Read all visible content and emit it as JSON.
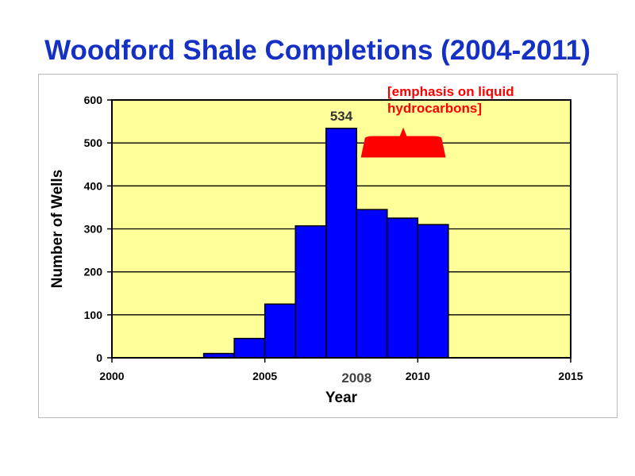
{
  "title": "Woodford Shale Completions (2004-2011)",
  "colors": {
    "title": "#1530c4",
    "plot_background": "#ffff99",
    "bar_fill": "#0000ff",
    "bar_stroke": "#000000",
    "note": "#ff0000"
  },
  "chart_data": {
    "type": "bar",
    "title": "Woodford Shale Completions (2004-2011)",
    "xlabel": "Year",
    "ylabel": "Number of Wells",
    "xlim": [
      2000,
      2015
    ],
    "ylim": [
      0,
      600
    ],
    "grid": true,
    "x_ticks": [
      "2000",
      "2005",
      "2010",
      "2015"
    ],
    "y_ticks": [
      "0",
      "100",
      "200",
      "300",
      "400",
      "500",
      "600"
    ],
    "x_highlight_label": "2008",
    "categories": [
      "2004",
      "2005",
      "2006",
      "2007",
      "2008",
      "2009",
      "2010",
      "2011"
    ],
    "values": [
      10,
      45,
      125,
      307,
      534,
      345,
      325,
      310
    ],
    "data_labels": [
      {
        "category": "2008",
        "text": "534"
      }
    ],
    "annotation": {
      "lines": [
        "[emphasis on liquid",
        "hydrocarbons]"
      ],
      "from_year": "2009",
      "to_year": "2011"
    }
  }
}
